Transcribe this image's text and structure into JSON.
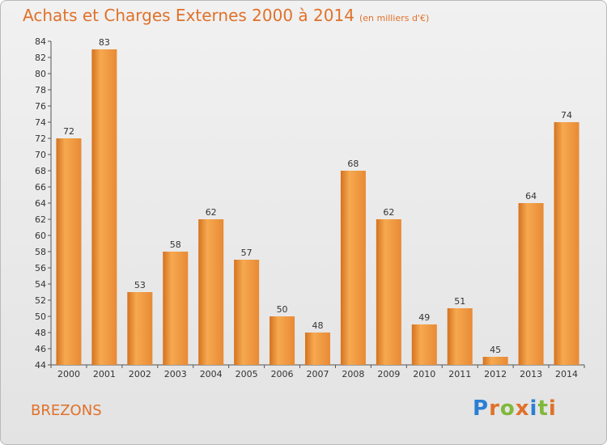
{
  "header": {
    "title": "Achats et Charges Externes 2000 à 2014",
    "unit": "(en milliers d'€)"
  },
  "footer": {
    "town": "BREZONS",
    "logo_text": "Proxiti",
    "logo_colors": [
      "#2a7fd4",
      "#e0712a",
      "#7fb93a",
      "#e0712a",
      "#2a7fd4",
      "#7fb93a",
      "#e0712a"
    ]
  },
  "colors": {
    "accent": "#e0712a",
    "bar_light": "#f6a950",
    "bar_dark": "#d4721f"
  },
  "chart_data": {
    "type": "bar",
    "categories": [
      "2000",
      "2001",
      "2002",
      "2003",
      "2004",
      "2005",
      "2006",
      "2007",
      "2008",
      "2009",
      "2010",
      "2011",
      "2012",
      "2013",
      "2014"
    ],
    "values": [
      72,
      83,
      53,
      58,
      62,
      57,
      50,
      48,
      68,
      62,
      49,
      51,
      45,
      64,
      74
    ],
    "title": "Achats et Charges Externes 2000 à 2014",
    "subtitle": "(en milliers d'€)",
    "xlabel": "",
    "ylabel": "",
    "ylim": [
      44,
      84
    ],
    "yticks": [
      44,
      46,
      48,
      50,
      52,
      54,
      56,
      58,
      60,
      62,
      64,
      66,
      68,
      70,
      72,
      74,
      76,
      78,
      80,
      82,
      84
    ],
    "grid": false,
    "data_labels": true
  }
}
